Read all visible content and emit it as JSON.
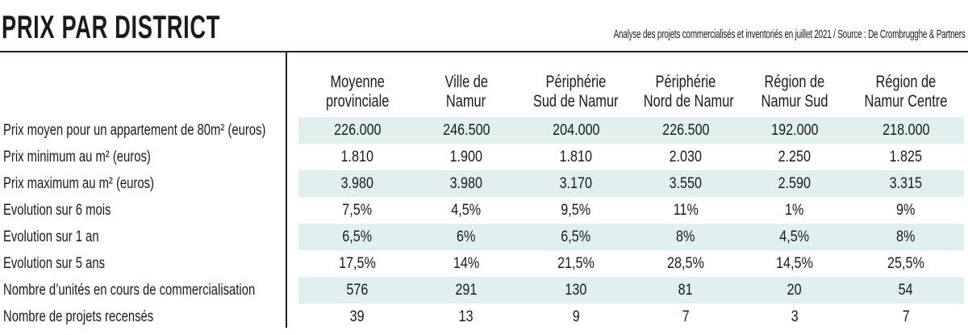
{
  "title": "PRIX PAR DISTRICT",
  "source": "Analyse des projets commercialisés et inventoriés en juillet 2021 / Source : De Crombrugghe & Partners",
  "columns": [
    [
      "Moyenne",
      "provinciale"
    ],
    [
      "Ville de",
      "Namur"
    ],
    [
      "Périphérie",
      "Sud de Namur"
    ],
    [
      "Périphérie",
      "Nord de Namur"
    ],
    [
      "Région de",
      "Namur Sud"
    ],
    [
      "Région de",
      "Namur Centre"
    ]
  ],
  "rows": [
    {
      "label": "Prix moyen pour un appartement de 80m² (euros)",
      "values": [
        "226.000",
        "246.500",
        "204.000",
        "226.500",
        "192.000",
        "218.000"
      ]
    },
    {
      "label": "Prix minimum au m² (euros)",
      "values": [
        "1.810",
        "1.900",
        "1.810",
        "2.030",
        "2.250",
        "1.825"
      ]
    },
    {
      "label": "Prix maximum au m² (euros)",
      "values": [
        "3.980",
        "3.980",
        "3.170",
        "3.550",
        "2.590",
        "3.315"
      ]
    },
    {
      "label": "Evolution sur 6 mois",
      "values": [
        "7,5%",
        "4,5%",
        "9,5%",
        "11%",
        "1%",
        "9%"
      ]
    },
    {
      "label": "Evolution sur 1 an",
      "values": [
        "6,5%",
        "6%",
        "6,5%",
        "8%",
        "4,5%",
        "8%"
      ]
    },
    {
      "label": "Evolution sur 5 ans",
      "values": [
        "17,5%",
        "14%",
        "21,5%",
        "28,5%",
        "14,5%",
        "25,5%"
      ]
    },
    {
      "label": "Nombre d’unités en cours de commercialisation",
      "values": [
        "576",
        "291",
        "130",
        "81",
        "20",
        "54"
      ]
    },
    {
      "label": "Nombre de projets recensés",
      "values": [
        "39",
        "13",
        "9",
        "7",
        "3",
        "7"
      ]
    }
  ],
  "colors": {
    "shade": "#dff0ee",
    "rule": "#222222"
  }
}
